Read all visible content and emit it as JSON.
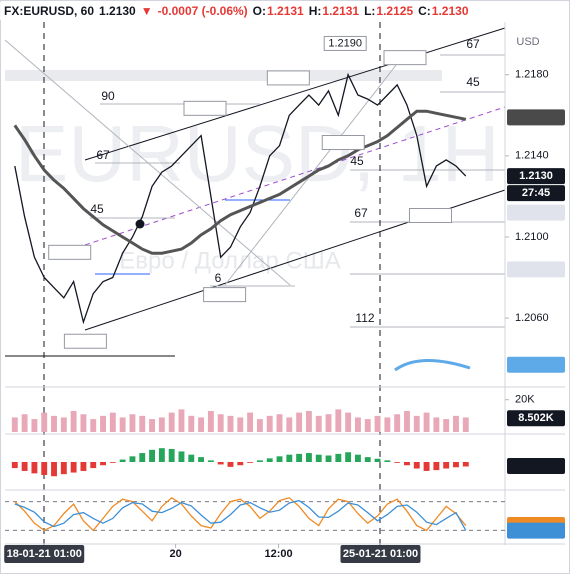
{
  "header": {
    "symbol": "FX:EURUSD, 60",
    "last": "1.2130",
    "arrow": "▼",
    "change": "-0.0007 (-0.06%)",
    "o_label": "O:",
    "o": "1.2131",
    "h_label": "H:",
    "h": "1.2131",
    "l_label": "L:",
    "l": "1.2125",
    "c_label": "C:",
    "c": "1.2130"
  },
  "watermark": {
    "symbol": "EURUSD, 1H",
    "description": "Евро / Доллар США"
  },
  "currency": "USD",
  "countdown": "27:45",
  "fib_labels": [
    "90",
    "67",
    "45",
    "6",
    "67",
    "45",
    "45",
    "67",
    "112"
  ],
  "chart_data": [
    {
      "type": "line",
      "xlim": [
        -1,
        50
      ],
      "ylim": [
        1.2027,
        1.2206
      ],
      "x": [
        0,
        1,
        2,
        3,
        4,
        5,
        6,
        7,
        8,
        9,
        10,
        11,
        12,
        13,
        14,
        15,
        16,
        17,
        18,
        19,
        20,
        21,
        22,
        23,
        24,
        25,
        26,
        27,
        28,
        29,
        30,
        31,
        32,
        33,
        34,
        35,
        36,
        37,
        38,
        39,
        40,
        41,
        42,
        43,
        44,
        45,
        46
      ],
      "series": [
        {
          "color": "#131722",
          "values": [
            1.2135,
            1.211,
            1.209,
            1.208,
            1.2075,
            1.207,
            1.2078,
            1.2058,
            1.2072,
            1.2078,
            1.208,
            1.2092,
            1.21,
            1.211,
            1.2125,
            1.2132,
            1.2135,
            1.214,
            1.2145,
            1.215,
            1.212,
            1.209,
            1.2095,
            1.2105,
            1.2112,
            1.2125,
            1.214,
            1.2145,
            1.216,
            1.2165,
            1.217,
            1.2165,
            1.2172,
            1.216,
            1.218,
            1.217,
            1.2168,
            1.2165,
            1.217,
            1.2175,
            1.2165,
            1.215,
            1.2125,
            1.2135,
            1.2138,
            1.2135,
            1.213
          ]
        },
        {
          "color": "#555555",
          "values": [
            1.2155,
            1.2148,
            1.214,
            1.2133,
            1.2128,
            1.2124,
            1.2119,
            1.2114,
            1.211,
            1.2106,
            1.2103,
            1.21,
            1.2097,
            1.2094,
            1.2092,
            1.2092,
            1.2093,
            1.2094,
            1.2097,
            1.2101,
            1.2104,
            1.2108,
            1.2111,
            1.2113,
            1.2115,
            1.2117,
            1.2119,
            1.2121,
            1.2124,
            1.2127,
            1.213,
            1.2133,
            1.2135,
            1.2138,
            1.214,
            1.2143,
            1.2145,
            1.2147,
            1.215,
            1.2154,
            1.2158,
            1.2162,
            1.2162,
            1.2161,
            1.216,
            1.2159,
            1.2158
          ]
        }
      ],
      "yticks": [
        {
          "value": 1.218,
          "label": "1.2180"
        },
        {
          "value": 1.214,
          "label": "1.2140"
        },
        {
          "value": 1.21,
          "label": "1.2100"
        },
        {
          "value": 1.206,
          "label": "1.2060"
        }
      ],
      "annotations": [
        {
          "x": 33.7,
          "value": 1.219,
          "label": "1.2190"
        },
        {
          "x": 39.8,
          "value": 1.2183
        },
        {
          "x": 27.9,
          "value": 1.2173
        },
        {
          "x": 19.4,
          "value": 1.2158
        },
        {
          "x": 33.5,
          "value": 1.2152
        },
        {
          "x": 42.4,
          "value": 1.2116
        },
        {
          "x": 5.6,
          "value": 1.2087
        },
        {
          "x": 21.4,
          "value": 1.2077
        },
        {
          "x": 7.2,
          "value": 1.2054
        }
      ],
      "tags": [
        {
          "value": 1.2159,
          "color": "#4a4a4a",
          "text_color": "#ffffff"
        },
        {
          "value": 1.213,
          "label": "1.2130",
          "color": "#131722",
          "text_color": "#ffffff"
        },
        {
          "value": 1.2112,
          "color": "#e0e3eb",
          "text_color": "#131722"
        },
        {
          "value": 1.2084,
          "color": "#e0e3eb",
          "text_color": "#131722"
        },
        {
          "value": 1.2037,
          "color": "#5ea9e8",
          "text_color": "#ffffff"
        }
      ]
    },
    {
      "type": "bar",
      "xlim": [
        -1,
        50
      ],
      "ylim": [
        0,
        26
      ],
      "color": "#e8a8b8",
      "values": [
        9,
        11,
        8,
        12,
        10,
        9,
        13,
        11,
        8,
        10,
        12,
        9,
        11,
        10,
        8,
        9,
        12,
        14,
        10,
        9,
        13,
        11,
        10,
        9,
        12,
        8,
        10,
        11,
        9,
        12,
        13,
        10,
        11,
        14,
        12,
        9,
        8,
        10,
        9,
        11,
        13,
        10,
        12,
        9,
        8,
        10,
        9
      ],
      "yticks": [
        {
          "value": 20,
          "label": "20K"
        }
      ],
      "tags": [
        {
          "value": 8.502,
          "label": "8.502K",
          "color": "#131722",
          "text_color": "#ffffff"
        }
      ]
    },
    {
      "type": "bar",
      "xlim": [
        -1,
        50
      ],
      "ylim": [
        -640,
        640
      ],
      "up_color": "#26a65b",
      "down_color": "#e53935",
      "values": [
        -150,
        -220,
        -280,
        -320,
        -350,
        -300,
        -260,
        -220,
        -150,
        -80,
        -20,
        60,
        140,
        220,
        300,
        340,
        320,
        260,
        180,
        120,
        40,
        -60,
        -120,
        -80,
        -20,
        40,
        90,
        140,
        180,
        200,
        220,
        180,
        160,
        200,
        240,
        180,
        120,
        80,
        40,
        -20,
        -80,
        -160,
        -220,
        -200,
        -160,
        -130,
        -110
      ],
      "tags": [
        {
          "value": -97.96,
          "color": "#131722",
          "text_color": "#ffffff"
        }
      ]
    },
    {
      "type": "line",
      "xlim": [
        -1,
        50
      ],
      "ylim": [
        0,
        100
      ],
      "levels": [
        80,
        20
      ],
      "series": [
        {
          "color": "#f08a24",
          "values": [
            80,
            60,
            35,
            20,
            30,
            55,
            75,
            40,
            20,
            45,
            70,
            85,
            80,
            60,
            40,
            70,
            88,
            75,
            50,
            30,
            25,
            55,
            80,
            85,
            70,
            45,
            60,
            82,
            88,
            70,
            45,
            30,
            65,
            85,
            80,
            55,
            35,
            50,
            75,
            85,
            60,
            30,
            20,
            45,
            70,
            55,
            30
          ]
        },
        {
          "color": "#3d8fd6",
          "values": [
            75,
            68,
            58,
            38,
            28,
            35,
            53,
            57,
            45,
            35,
            45,
            67,
            78,
            75,
            60,
            57,
            66,
            78,
            71,
            52,
            35,
            37,
            53,
            73,
            78,
            67,
            58,
            62,
            77,
            82,
            68,
            48,
            47,
            60,
            77,
            73,
            57,
            40,
            53,
            70,
            73,
            58,
            37,
            32,
            45,
            57,
            20
          ]
        }
      ],
      "tags": [
        {
          "value": 31.18,
          "color": "#f08a24",
          "text_color": "#ffffff"
        },
        {
          "value": 19.45,
          "color": "#3d8fd6",
          "text_color": "#ffffff"
        }
      ],
      "xticks": [
        {
          "value": 3,
          "label": "18-01-21  01:00"
        },
        {
          "value": 16.4,
          "label": "20"
        },
        {
          "value": 26.9,
          "label": "12:00"
        },
        {
          "value": 37.3,
          "label": "25-01-21  01:00"
        }
      ]
    }
  ]
}
